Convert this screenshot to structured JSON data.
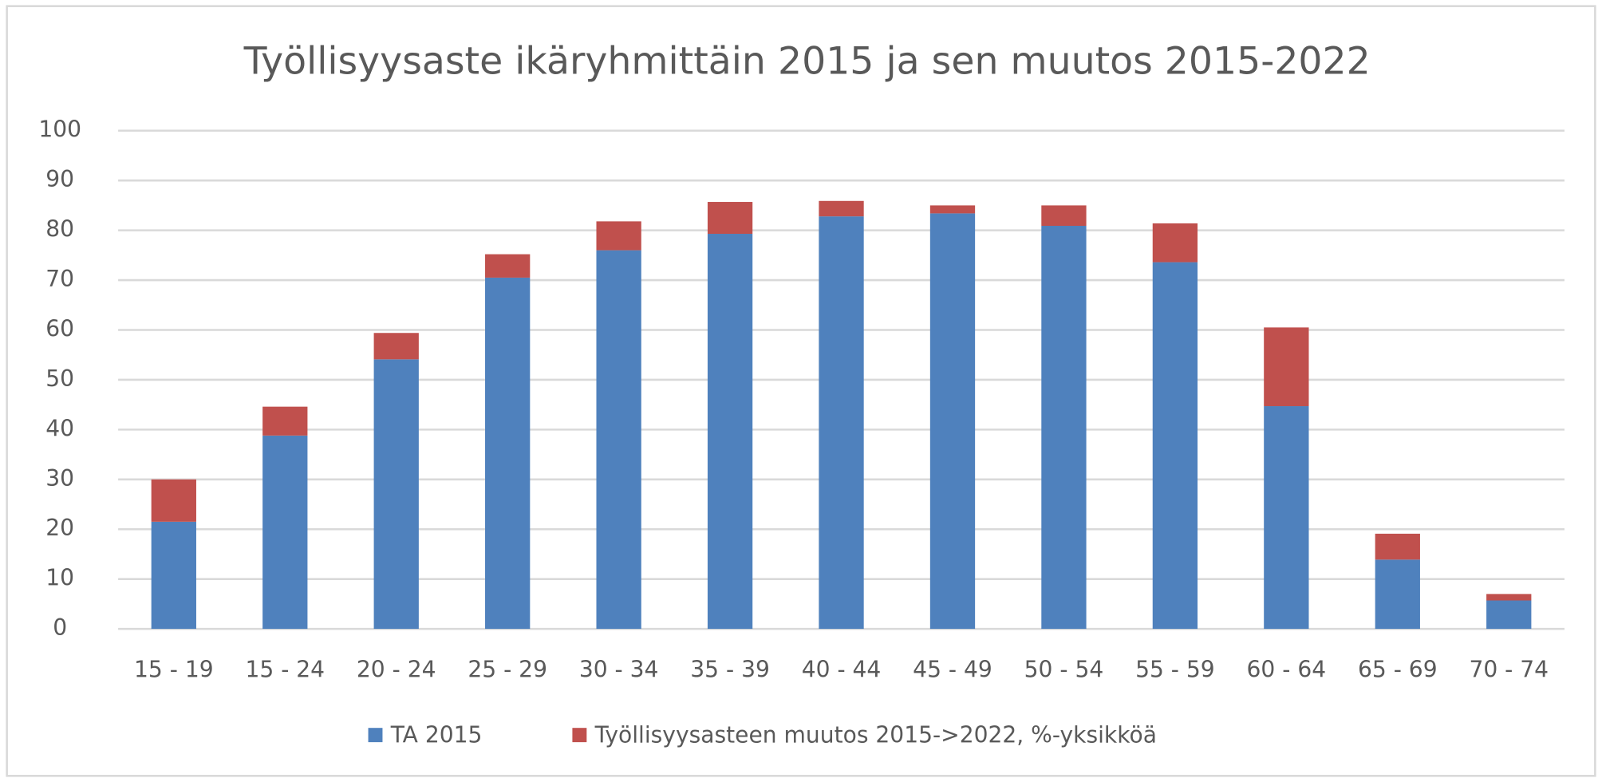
{
  "chart_data": {
    "type": "bar",
    "stacked": true,
    "title": "Työllisyysaste ikäryhmittäin 2015 ja sen muutos 2015-2022",
    "categories": [
      "15 - 19",
      "15 - 24",
      "20 - 24",
      "25 - 29",
      "30 - 34",
      "35 - 39",
      "40 - 44",
      "45 - 49",
      "50 - 54",
      "55 - 59",
      "60 - 64",
      "65 - 69",
      "70 - 74"
    ],
    "series": [
      {
        "name": "TA 2015",
        "color": "#4f81bd",
        "values": [
          21.5,
          38.8,
          54.1,
          70.5,
          76.0,
          79.3,
          82.8,
          83.4,
          80.9,
          73.6,
          44.7,
          13.9,
          5.7
        ]
      },
      {
        "name": "Työllisyysasteen muutos 2015->2022, %-yksikköä",
        "color": "#c0504d",
        "values": [
          8.5,
          5.8,
          5.3,
          4.7,
          5.8,
          6.4,
          3.1,
          1.6,
          4.1,
          7.8,
          15.8,
          5.2,
          1.3
        ]
      }
    ],
    "ylim": [
      0,
      100
    ],
    "yticks": [
      0,
      10,
      20,
      30,
      40,
      50,
      60,
      70,
      80,
      90,
      100
    ],
    "grid": true,
    "legend": "bottom"
  }
}
